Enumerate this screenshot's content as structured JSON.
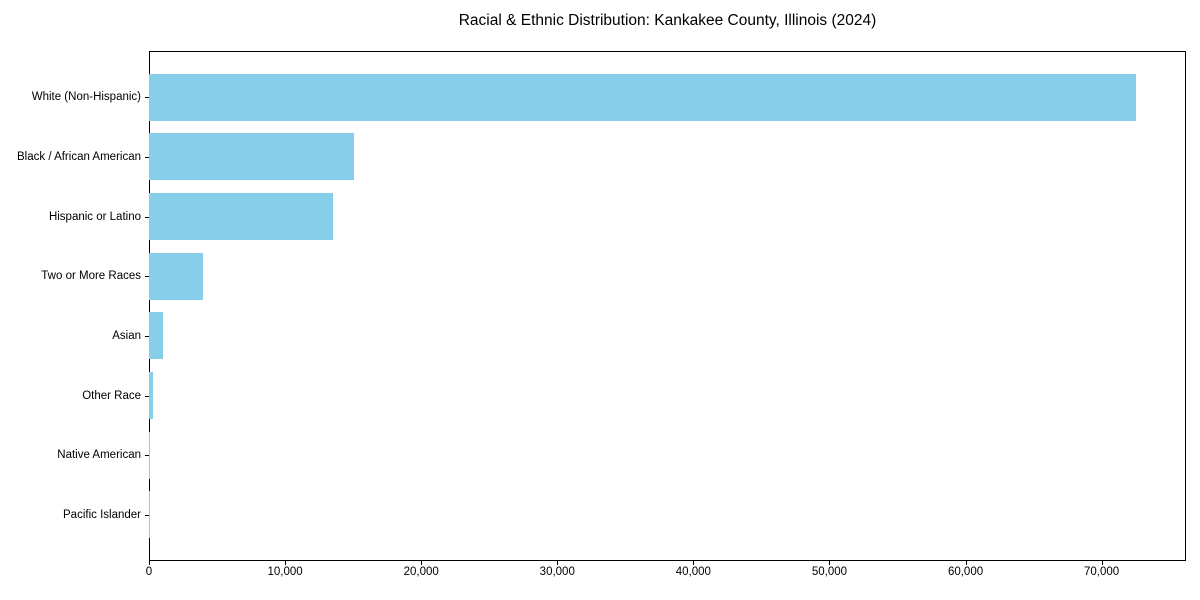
{
  "chart_data": {
    "type": "bar",
    "orientation": "horizontal",
    "title": "Racial & Ethnic Distribution: Kankakee County, Illinois (2024)",
    "categories": [
      "White (Non-Hispanic)",
      "Black / African American",
      "Hispanic or Latino",
      "Two or More Races",
      "Asian",
      "Other Race",
      "Native American",
      "Pacific Islander"
    ],
    "values": [
      72500,
      15100,
      13500,
      3950,
      1000,
      280,
      50,
      20
    ],
    "xlabel": "",
    "ylabel": "",
    "xlim": [
      0,
      76200
    ],
    "xticks": [
      0,
      10000,
      20000,
      30000,
      40000,
      50000,
      60000,
      70000
    ],
    "xtick_labels": [
      "0",
      "10,000",
      "20,000",
      "30,000",
      "40,000",
      "50,000",
      "60,000",
      "70,000"
    ],
    "bar_color": "#87CEEB",
    "background_color": "#FFFFFF",
    "spine_color": "#000000",
    "text_color": "#000000",
    "grid": false,
    "legend": false,
    "category_axis": "y",
    "value_axis": "x"
  }
}
